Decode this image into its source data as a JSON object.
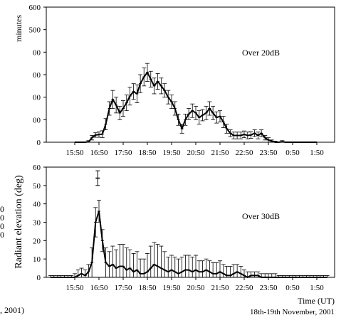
{
  "chart_data": [
    {
      "type": "line",
      "annotation": "Over 20dB",
      "ylabel_fragment": "minutes",
      "yticks": [
        "600",
        "500",
        "00",
        "00",
        "00",
        "00",
        "0"
      ],
      "ylim": [
        0,
        600
      ],
      "categories": [
        "15:50",
        "16:50",
        "17:50",
        "18:50",
        "19:50",
        "20:50",
        "21:50",
        "22:50",
        "23:50",
        "0:50",
        "1:50"
      ],
      "series": [
        {
          "x": [
            0.0,
            0.43,
            0.57,
            0.71,
            0.86,
            1.0,
            1.14,
            1.28,
            1.43,
            1.57,
            1.71,
            1.86,
            2.0,
            2.14,
            2.28,
            2.43,
            2.57,
            2.71,
            2.86,
            3.0,
            3.14,
            3.28,
            3.43,
            3.57,
            3.71,
            3.86,
            4.0,
            4.14,
            4.28,
            4.43,
            4.57,
            4.71,
            4.86,
            5.0,
            5.14,
            5.28,
            5.43,
            5.57,
            5.71,
            5.86,
            6.0,
            6.14,
            6.28,
            6.43,
            6.57,
            6.71,
            6.86,
            7.0,
            7.14,
            7.28,
            7.43,
            7.57,
            7.71,
            7.86,
            8.0,
            8.14,
            8.28,
            8.43,
            8.57,
            8.71,
            8.86,
            9.0,
            9.14,
            9.28,
            9.43,
            9.57,
            9.71,
            9.86,
            10.0
          ],
          "y": [
            0,
            0,
            2,
            20,
            32,
            34,
            36,
            80,
            150,
            190,
            165,
            130,
            150,
            175,
            205,
            225,
            215,
            260,
            290,
            310,
            280,
            250,
            270,
            250,
            230,
            200,
            180,
            150,
            100,
            60,
            100,
            125,
            140,
            130,
            110,
            120,
            130,
            150,
            130,
            110,
            115,
            90,
            60,
            40,
            30,
            30,
            30,
            35,
            30,
            32,
            40,
            30,
            40,
            20,
            10,
            5,
            0,
            0,
            2,
            0,
            0,
            0,
            0,
            0,
            0,
            0,
            0,
            0,
            0
          ],
          "err": [
            0,
            0,
            5,
            10,
            10,
            12,
            15,
            25,
            30,
            40,
            35,
            30,
            35,
            35,
            40,
            35,
            40,
            40,
            40,
            40,
            35,
            35,
            35,
            35,
            30,
            30,
            30,
            30,
            25,
            20,
            25,
            25,
            30,
            30,
            30,
            25,
            30,
            30,
            30,
            25,
            25,
            25,
            20,
            15,
            15,
            15,
            15,
            15,
            15,
            15,
            15,
            15,
            15,
            10,
            10,
            5,
            5,
            0,
            5,
            0,
            0,
            0,
            0,
            0,
            0,
            0,
            0,
            0,
            0
          ]
        }
      ]
    },
    {
      "type": "line",
      "annotation": "Over 30dB",
      "ylabel": "Radiant elevation (deg)",
      "yticks": [
        "60",
        "50",
        "40",
        "30",
        "20",
        "10",
        "0"
      ],
      "ylim": [
        0,
        60
      ],
      "categories": [
        "15:50",
        "16:50",
        "17:50",
        "18:50",
        "19:50",
        "20:50",
        "21:50",
        "22:50",
        "23:50",
        "0:50",
        "1:50"
      ],
      "xlabel": "Time (UT)",
      "date": "18th-19th November, 2001",
      "outlier": {
        "x": 0.95,
        "y": 54,
        "err": 4
      },
      "series": [
        {
          "x": [
            -1.0,
            -0.86,
            -0.71,
            -0.57,
            -0.43,
            -0.28,
            -0.14,
            0.0,
            0.14,
            0.28,
            0.43,
            0.57,
            0.71,
            0.86,
            1.0,
            1.14,
            1.28,
            1.43,
            1.57,
            1.71,
            1.86,
            2.0,
            2.14,
            2.28,
            2.43,
            2.57,
            2.71,
            2.86,
            3.0,
            3.14,
            3.28,
            3.43,
            3.57,
            3.71,
            3.86,
            4.0,
            4.14,
            4.28,
            4.43,
            4.57,
            4.71,
            4.86,
            5.0,
            5.14,
            5.28,
            5.43,
            5.57,
            5.71,
            5.86,
            6.0,
            6.14,
            6.28,
            6.43,
            6.57,
            6.71,
            6.86,
            7.0,
            7.14,
            7.28,
            7.43,
            7.57,
            7.71,
            7.86,
            8.0,
            8.14,
            8.28,
            8.43,
            8.57,
            8.71,
            8.86,
            9.0,
            9.14,
            9.28,
            9.43,
            9.57,
            9.71,
            9.86,
            10.0,
            10.14,
            10.28,
            10.43
          ],
          "y": [
            0,
            0,
            0,
            0,
            0,
            0,
            0,
            0,
            1,
            2,
            1,
            3,
            8,
            30,
            36,
            20,
            8,
            6,
            7,
            5,
            6,
            6,
            4,
            5,
            3,
            4,
            2,
            2,
            3,
            5,
            7,
            6,
            5,
            4,
            3,
            4,
            3,
            2,
            3,
            4,
            4,
            3,
            4,
            3,
            3,
            4,
            3,
            2,
            2,
            3,
            2,
            1,
            1,
            2,
            3,
            2,
            1,
            0,
            1,
            1,
            1,
            0,
            0,
            0,
            0,
            0,
            0,
            0,
            0,
            0,
            0,
            0,
            0,
            0,
            0,
            0,
            0,
            0,
            0,
            0,
            0
          ],
          "err": [
            1,
            1,
            1,
            1,
            1,
            1,
            1,
            2,
            3,
            3,
            3,
            4,
            8,
            8,
            6,
            6,
            8,
            8,
            10,
            10,
            12,
            12,
            12,
            10,
            10,
            10,
            8,
            8,
            10,
            12,
            12,
            12,
            12,
            10,
            8,
            8,
            8,
            8,
            8,
            8,
            8,
            8,
            8,
            6,
            6,
            6,
            6,
            6,
            6,
            6,
            5,
            5,
            5,
            5,
            4,
            4,
            3,
            3,
            2,
            2,
            2,
            2,
            2,
            2,
            2,
            2,
            1,
            1,
            1,
            1,
            1,
            1,
            1,
            1,
            1,
            1,
            1,
            1,
            1,
            1,
            1
          ]
        }
      ]
    }
  ],
  "margin_text": {
    "left_zeros": [
      "0",
      "0",
      "0",
      "0"
    ],
    "left_caption": ", 2001)"
  }
}
